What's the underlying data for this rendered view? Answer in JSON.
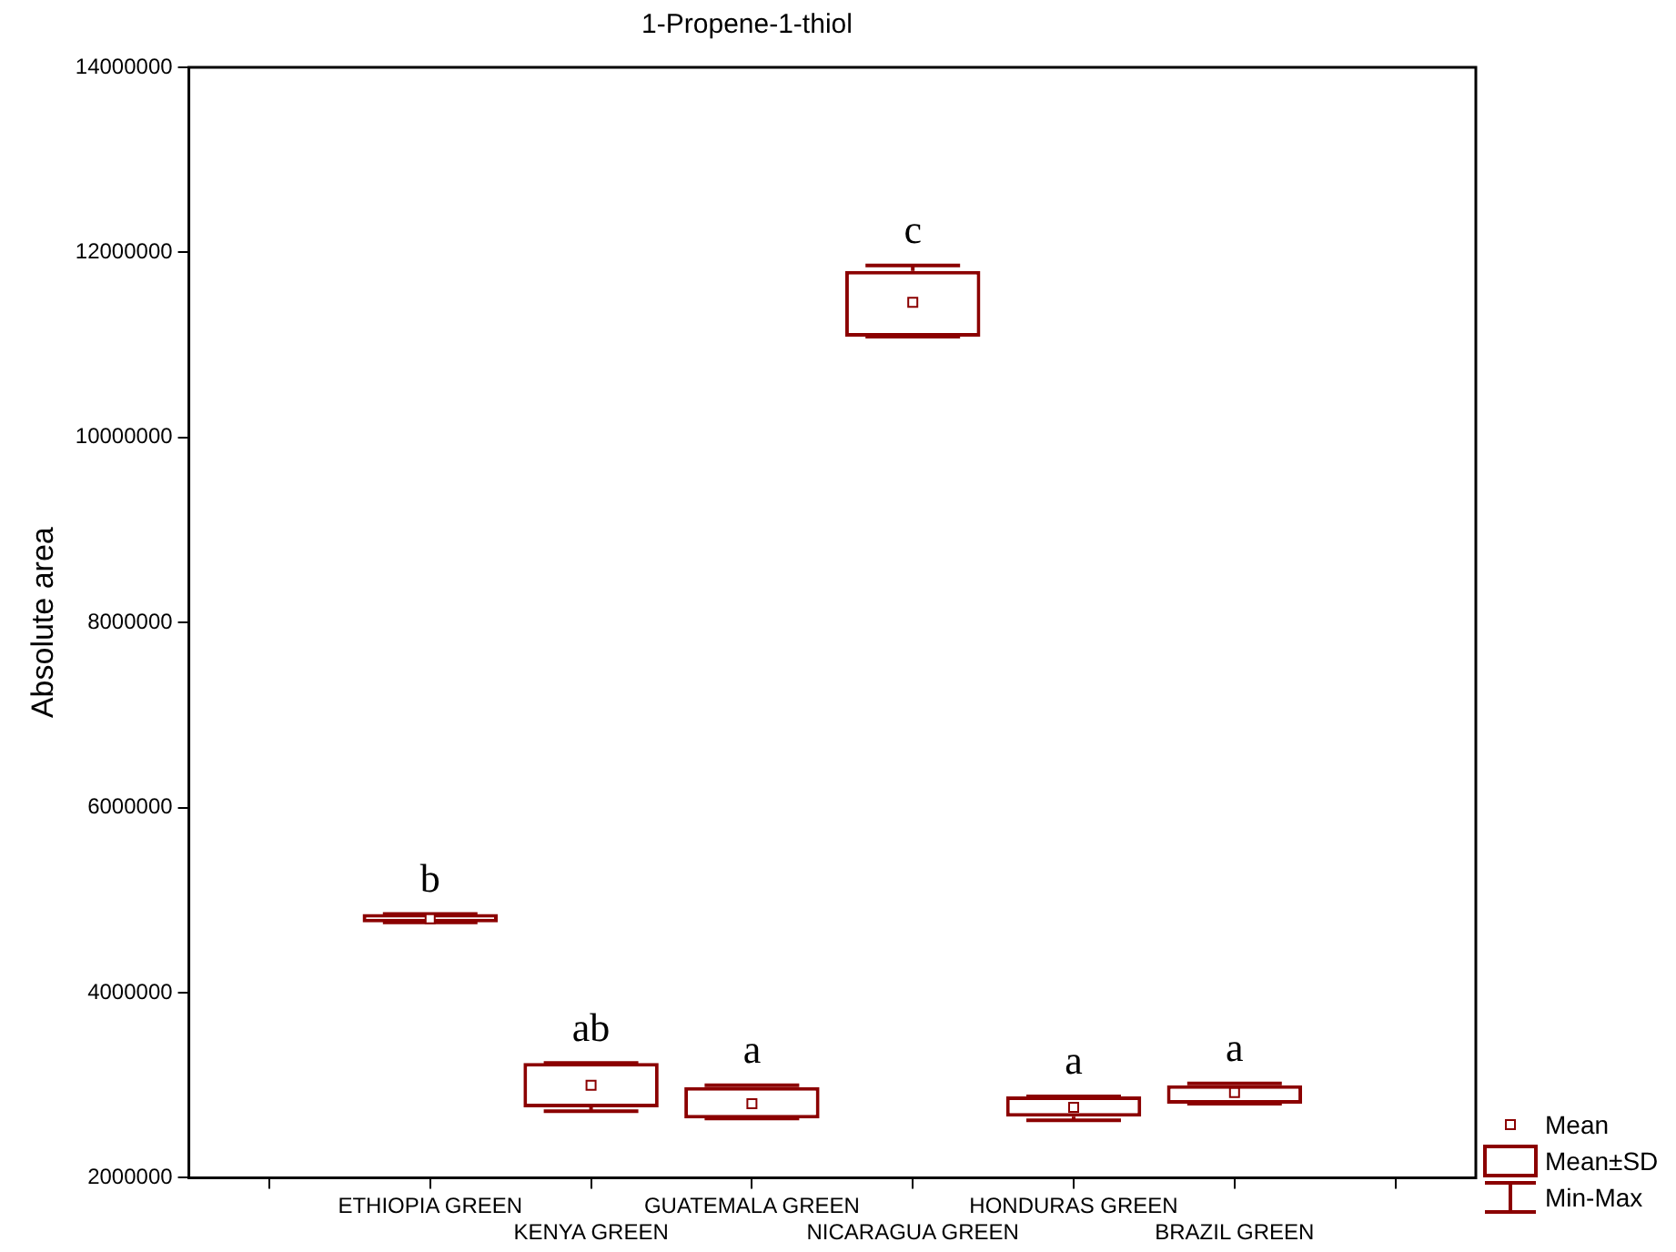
{
  "chart_data": {
    "type": "box",
    "title": "1-Propene-1-thiol",
    "ylabel": "Absolute area",
    "categories": [
      null,
      "ETHIOPIA GREEN",
      "KENYA GREEN",
      "GUATEMALA GREEN",
      "NICARAGUA GREEN",
      "HONDURAS GREEN",
      "BRAZIL GREEN",
      null
    ],
    "color": "#8b0000",
    "boxes": [
      null,
      {
        "low": 4760000,
        "q1": 4760000,
        "q3": 4850000,
        "high": 4850000,
        "mean": 4800000
      },
      {
        "low": 2720000,
        "q1": 2760000,
        "q3": 3240000,
        "high": 3240000,
        "mean": 3000000
      },
      {
        "low": 2640000,
        "q1": 2640000,
        "q3": 2980000,
        "high": 3000000,
        "mean": 2800000
      },
      {
        "low": 11090000,
        "q1": 11090000,
        "q3": 11800000,
        "high": 11860000,
        "mean": 11460000
      },
      {
        "low": 2620000,
        "q1": 2660000,
        "q3": 2880000,
        "high": 2880000,
        "mean": 2760000
      },
      {
        "low": 2800000,
        "q1": 2800000,
        "q3": 3000000,
        "high": 3020000,
        "mean": 2920000
      },
      null
    ],
    "ylim": [
      2000000,
      14000000
    ],
    "yticks": [
      2000000,
      4000000,
      6000000,
      8000000,
      10000000,
      12000000,
      14000000
    ],
    "grid": false,
    "annotations": [
      "b",
      "ab",
      "a",
      "c",
      "a",
      "a",
      "Mean",
      "Mean±SD",
      "Min-Max"
    ]
  }
}
